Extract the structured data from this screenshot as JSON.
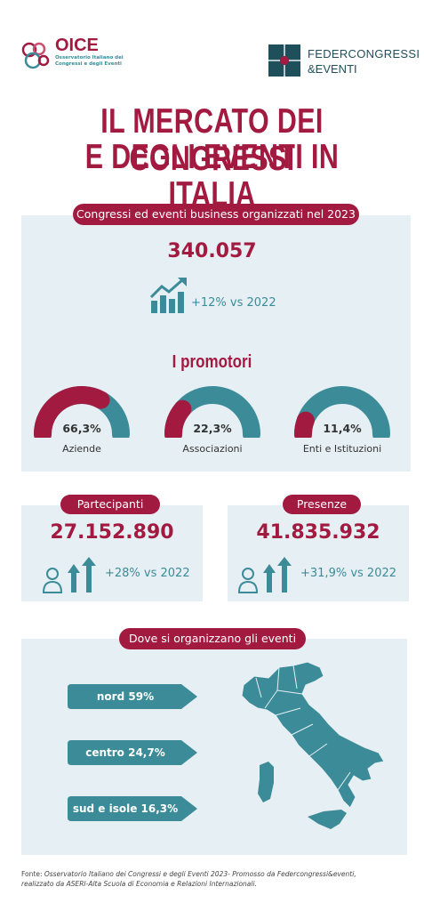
{
  "header": {
    "oice_logo_text": "OICE",
    "oice_subtitle_line1": "Osservatorio Italiano dei",
    "oice_subtitle_line2": "Congressi e degli Eventi",
    "fed_line1": "FEDERCONGRESSI",
    "fed_line2": "&EVENTI"
  },
  "title": {
    "line1": "IL MERCATO DEI CONGRESSI",
    "line2": "E DEGLI EVENTI IN ITALIA"
  },
  "business": {
    "pill": "Congressi ed eventi business organizzati nel 2023",
    "value": "340.057",
    "change": "+12% vs 2022"
  },
  "promotori": {
    "heading": "I promotori",
    "items": [
      {
        "label": "Aziende",
        "value": "66,3%",
        "fraction": 0.663
      },
      {
        "label": "Associazioni",
        "value": "22,3%",
        "fraction": 0.223
      },
      {
        "label": "Enti e Istituzioni",
        "value": "11,4%",
        "fraction": 0.114
      }
    ]
  },
  "partecipanti": {
    "pill": "Partecipanti",
    "value": "27.152.890",
    "change": "+28% vs 2022"
  },
  "presenze": {
    "pill": "Presenze",
    "value": "41.835.932",
    "change": "+31,9% vs 2022"
  },
  "dove": {
    "pill": "Dove si organizzano gli eventi",
    "regions": [
      {
        "label": "nord 59%"
      },
      {
        "label": "centro 24,7%"
      },
      {
        "label": "sud e isole 16,3%"
      }
    ]
  },
  "footer": {
    "prefix": "Fonte: ",
    "line1_italic": "Osservatorio Italiano dei Congressi e degli Eventi 2023- Promosso da Federcongressi&eventi,",
    "line2_italic": "realizzato da ASERI-Alta Scuola di Economia e Relazioni Internazionali."
  },
  "colors": {
    "maroon": "#a31a41",
    "teal": "#3b8c98",
    "panel": "#e6eff3"
  }
}
